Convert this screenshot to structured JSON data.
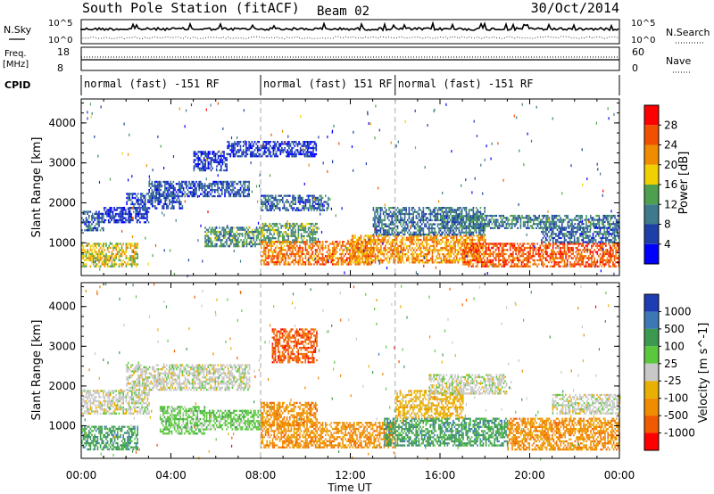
{
  "header": {
    "station": "South Pole Station (fitACF)",
    "beam": "Beam 02",
    "date": "30/Oct/2014"
  },
  "top_panels": {
    "nsky_label": "N.Sky",
    "nsky_ticks": [
      "10^5",
      "10^0"
    ],
    "nsearch_label": "N.Search",
    "freq_label_1": "Freq.",
    "freq_label_2": "[MHz]",
    "freq_ticks": [
      "18",
      "8"
    ],
    "nave_label": "Nave",
    "nave_ticks": [
      "60",
      "0"
    ],
    "cpid_label": "CPID",
    "cpid_segments": [
      {
        "label": "normal (fast) -151 RF",
        "start_hour": 0,
        "end_hour": 8
      },
      {
        "label": "normal (fast) 151 RF",
        "start_hour": 8,
        "end_hour": 14
      },
      {
        "label": "normal (fast) -151 RF",
        "start_hour": 14,
        "end_hour": 24
      }
    ]
  },
  "colors": {
    "power": [
      "#0000ff",
      "#1e3fa8",
      "#3c7a8c",
      "#4ea04e",
      "#f0d000",
      "#f08c00",
      "#f05000",
      "#ff0000"
    ],
    "velocity": [
      "#ff0000",
      "#f05a00",
      "#f08c00",
      "#e8b000",
      "#c8c8c8",
      "#5ac83c",
      "#3c9a50",
      "#3c78b4",
      "#1e3cb4"
    ]
  },
  "chart_data": [
    {
      "type": "heatmap",
      "quantity": "Power",
      "ylabel": "Slant Range [km]",
      "xlabel": "",
      "x_ticks": [
        "00:00",
        "04:00",
        "08:00",
        "12:00",
        "16:00",
        "20:00",
        "00:00"
      ],
      "x_range_hours": [
        0,
        24
      ],
      "y_ticks": [
        "1000",
        "2000",
        "3000",
        "4000"
      ],
      "y_range_km": [
        180,
        4600
      ],
      "colorbar_label": "Power [dB]",
      "colorbar_ticks": [
        "4",
        "8",
        "12",
        "16",
        "20",
        "24",
        "28"
      ],
      "colorbar_range": [
        0,
        32
      ],
      "regions": [
        {
          "t0": 0.0,
          "t1": 2.5,
          "r0": 400,
          "r1": 1000,
          "level": 18
        },
        {
          "t0": 0.0,
          "t1": 1.0,
          "r0": 1300,
          "r1": 1800,
          "level": 8
        },
        {
          "t0": 1.0,
          "t1": 3.0,
          "r0": 1500,
          "r1": 1900,
          "level": 4
        },
        {
          "t0": 2.0,
          "t1": 4.5,
          "r0": 1850,
          "r1": 2250,
          "level": 6
        },
        {
          "t0": 3.0,
          "t1": 7.5,
          "r0": 2150,
          "r1": 2550,
          "level": 7
        },
        {
          "t0": 5.0,
          "t1": 6.5,
          "r0": 2800,
          "r1": 3300,
          "level": 5
        },
        {
          "t0": 5.5,
          "t1": 8.0,
          "r0": 900,
          "r1": 1400,
          "level": 12
        },
        {
          "t0": 6.5,
          "t1": 10.5,
          "r0": 3150,
          "r1": 3550,
          "level": 5
        },
        {
          "t0": 8.0,
          "t1": 11.0,
          "r0": 1800,
          "r1": 2200,
          "level": 8
        },
        {
          "t0": 8.0,
          "t1": 10.5,
          "r0": 1000,
          "r1": 1500,
          "level": 13
        },
        {
          "t0": 8.0,
          "t1": 13.0,
          "r0": 450,
          "r1": 1050,
          "level": 24
        },
        {
          "t0": 12.0,
          "t1": 18.0,
          "r0": 500,
          "r1": 1200,
          "level": 22
        },
        {
          "t0": 13.0,
          "t1": 18.0,
          "r0": 1200,
          "r1": 1900,
          "level": 9
        },
        {
          "t0": 16.0,
          "t1": 24.0,
          "r0": 1350,
          "r1": 1700,
          "level": 10
        },
        {
          "t0": 17.0,
          "t1": 24.0,
          "r0": 400,
          "r1": 1000,
          "level": 26
        },
        {
          "t0": 20.5,
          "t1": 24.0,
          "r0": 1000,
          "r1": 1400,
          "level": 8
        }
      ]
    },
    {
      "type": "heatmap",
      "quantity": "Velocity",
      "ylabel": "Slant Range [km]",
      "xlabel": "Time UT",
      "x_ticks": [
        "00:00",
        "04:00",
        "08:00",
        "12:00",
        "16:00",
        "20:00",
        "00:00"
      ],
      "x_range_hours": [
        0,
        24
      ],
      "y_ticks": [
        "1000",
        "2000",
        "3000",
        "4000"
      ],
      "y_range_km": [
        180,
        4600
      ],
      "colorbar_label": "Velocity [m s^-1]",
      "colorbar_ticks": [
        "1000",
        "500",
        "100",
        "25",
        "-25",
        "-100",
        "-500",
        "-1000"
      ],
      "regions": [
        {
          "t0": 0.0,
          "t1": 2.5,
          "r0": 400,
          "r1": 1000,
          "bin": 6
        },
        {
          "t0": 0.0,
          "t1": 3.0,
          "r0": 1300,
          "r1": 1900,
          "bin": 4
        },
        {
          "t0": 2.0,
          "t1": 7.5,
          "r0": 1900,
          "r1": 2550,
          "bin": 4
        },
        {
          "t0": 3.5,
          "t1": 5.5,
          "r0": 800,
          "r1": 1500,
          "bin": 5
        },
        {
          "t0": 5.5,
          "t1": 8.0,
          "r0": 900,
          "r1": 1400,
          "bin": 5
        },
        {
          "t0": 8.5,
          "t1": 10.5,
          "r0": 2600,
          "r1": 3450,
          "bin": 1
        },
        {
          "t0": 8.0,
          "t1": 10.5,
          "r0": 1000,
          "r1": 1600,
          "bin": 2
        },
        {
          "t0": 8.0,
          "t1": 14.0,
          "r0": 450,
          "r1": 1100,
          "bin": 2
        },
        {
          "t0": 13.5,
          "t1": 19.0,
          "r0": 500,
          "r1": 1200,
          "bin": 6
        },
        {
          "t0": 14.0,
          "t1": 17.0,
          "r0": 1200,
          "r1": 1900,
          "bin": 3
        },
        {
          "t0": 15.5,
          "t1": 19.0,
          "r0": 1800,
          "r1": 2300,
          "bin": 4
        },
        {
          "t0": 19.0,
          "t1": 24.0,
          "r0": 400,
          "r1": 1200,
          "bin": 2
        },
        {
          "t0": 21.0,
          "t1": 24.0,
          "r0": 1300,
          "r1": 1800,
          "bin": 4
        }
      ]
    }
  ]
}
